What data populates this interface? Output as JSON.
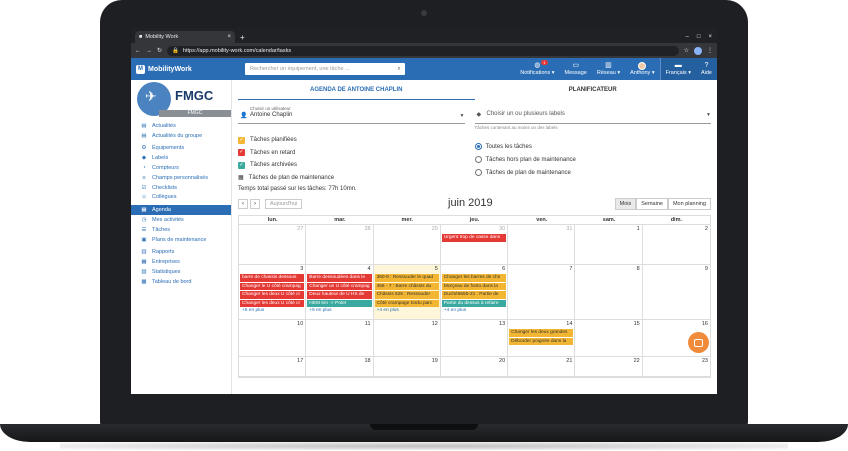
{
  "browser": {
    "tab_title": "Mobility Work",
    "url": "https://app.mobility-work.com/calendar/tasks"
  },
  "header": {
    "brand": "MobilityWork",
    "search_placeholder": "Rechercher un équipement, une tâche ...",
    "notif_count": "1",
    "nav": [
      "Notifications ▾",
      "Message",
      "Réseau ▾",
      "Anthony ▾",
      "Français ▾",
      "Aide"
    ]
  },
  "sidebar": {
    "company": "FMGC",
    "company_bar": "FMGC",
    "items": [
      {
        "label": "Actualités",
        "icon": "▤"
      },
      {
        "label": "Actualités du groupe",
        "icon": "▤"
      },
      {
        "label": "Équipements",
        "icon": "⚙"
      },
      {
        "label": "Labels",
        "icon": "◆"
      },
      {
        "label": "Compteurs",
        "icon": "◔"
      },
      {
        "label": "Champs personnalisés",
        "icon": "≡"
      },
      {
        "label": "Checklists",
        "icon": "☑"
      },
      {
        "label": "Collègues",
        "icon": "☺"
      },
      {
        "label": "Agenda",
        "icon": "▦"
      },
      {
        "label": "Mes activités",
        "icon": "◷"
      },
      {
        "label": "Tâches",
        "icon": "☰"
      },
      {
        "label": "Plans de maintenance",
        "icon": "▣"
      },
      {
        "label": "Rapports",
        "icon": "▥"
      },
      {
        "label": "Entreprises",
        "icon": "▦"
      },
      {
        "label": "Statistiques",
        "icon": "▧"
      },
      {
        "label": "Tableau de bord",
        "icon": "▩"
      }
    ]
  },
  "main": {
    "tab_agenda": "AGENDA DE ANTOINE CHAPLIN",
    "tab_planner": "PLANIFICATEUR",
    "user_label": "Choisir un utilisateur",
    "user_value": "Antoine Chaplin",
    "labels_placeholder": "Choisir un ou plusieurs labels",
    "labels_hint": "Tâches contenant au moins un des labels",
    "checkboxes": [
      {
        "label": "Tâches planifiées",
        "color": "#f2b632"
      },
      {
        "label": "Tâches en retard",
        "color": "#e53935"
      },
      {
        "label": "Tâches archivées",
        "color": "#3aa99f"
      }
    ],
    "maint_label": "Tâches de plan de maintenance",
    "radios": [
      "Toutes les tâches",
      "Tâches hors plan de maintenance",
      "Tâches de plan de maintenance"
    ],
    "total": "Temps total passé sur les tâches: 77h 10mn."
  },
  "calendar": {
    "today_label": "Aujourd'hui",
    "month": "juin 2019",
    "views": [
      "Mois",
      "Semaine",
      "Mon planning"
    ],
    "dows": [
      "lun.",
      "mar.",
      "mer.",
      "jeu.",
      "ven.",
      "sam.",
      "dim."
    ],
    "weeks": [
      {
        "days": [
          {
            "n": "27",
            "dim": true,
            "events": [],
            "more": ""
          },
          {
            "n": "28",
            "dim": true,
            "events": [],
            "more": ""
          },
          {
            "n": "29",
            "dim": true,
            "events": [],
            "more": ""
          },
          {
            "n": "30",
            "dim": true,
            "events": [
              {
                "t": "Urgent trop de casse dans",
                "c": "red"
              }
            ],
            "more": ""
          },
          {
            "n": "31",
            "dim": true,
            "events": [],
            "more": ""
          },
          {
            "n": "1",
            "dim": false,
            "events": [],
            "more": ""
          },
          {
            "n": "2",
            "dim": false,
            "events": [],
            "more": ""
          }
        ]
      },
      {
        "days": [
          {
            "n": "3",
            "dim": false,
            "events": [
              {
                "t": "barre de chassis dessous",
                "c": "red"
              },
              {
                "t": "Changer le U côté crampag",
                "c": "red"
              },
              {
                "t": "Changer les deux U côté cr",
                "c": "red"
              },
              {
                "t": "Changer les deux U côté cr",
                "c": "red"
              }
            ],
            "more": "+5 en plus"
          },
          {
            "n": "4",
            "dim": false,
            "events": [
              {
                "t": "Barre dessoudées dans le",
                "c": "red"
              },
              {
                "t": "Changer un U côté crampag",
                "c": "red"
              },
              {
                "t": "Deux hauteur de U HS de",
                "c": "red"
              },
              {
                "t": "HEM 6m -> Poter",
                "c": "grn"
              }
            ],
            "more": "+5 en plus"
          },
          {
            "n": "5",
            "dim": false,
            "hl": true,
            "events": [
              {
                "t": "360-9 : Ressouder le quad",
                "c": "yel"
              },
              {
                "t": "456 - 7 : Barre châssis du",
                "c": "yel"
              },
              {
                "t": "Châssis 625 : Ressouder",
                "c": "yel"
              },
              {
                "t": "Côté crampage tordu parc",
                "c": "yel"
              }
            ],
            "more": "+4 en plus"
          },
          {
            "n": "6",
            "dim": false,
            "events": [
              {
                "t": "Changer les barres de chs",
                "c": "yel"
              },
              {
                "t": "Morçeau de fonto dans la",
                "c": "yel"
              },
              {
                "t": "Duché6555-21 : Partie de",
                "c": "yel"
              },
              {
                "t": "Partie du dessus à refaire",
                "c": "grn"
              }
            ],
            "more": "+4 en plus"
          },
          {
            "n": "7",
            "dim": false,
            "events": [],
            "more": ""
          },
          {
            "n": "8",
            "dim": false,
            "events": [],
            "more": ""
          },
          {
            "n": "9",
            "dim": false,
            "events": [],
            "more": ""
          }
        ]
      },
      {
        "days": [
          {
            "n": "10",
            "dim": false,
            "events": [],
            "more": ""
          },
          {
            "n": "11",
            "dim": false,
            "events": [],
            "more": ""
          },
          {
            "n": "12",
            "dim": false,
            "events": [],
            "more": ""
          },
          {
            "n": "13",
            "dim": false,
            "events": [],
            "more": ""
          },
          {
            "n": "14",
            "dim": false,
            "events": [
              {
                "t": "Changer les deux grandes",
                "c": "yel"
              },
              {
                "t": "Déborder poignée dans la",
                "c": "yel"
              }
            ],
            "more": ""
          },
          {
            "n": "15",
            "dim": false,
            "events": [],
            "more": ""
          },
          {
            "n": "16",
            "dim": false,
            "events": [],
            "more": ""
          }
        ]
      },
      {
        "days": [
          {
            "n": "17",
            "dim": false,
            "events": [],
            "more": ""
          },
          {
            "n": "18",
            "dim": false,
            "events": [],
            "more": ""
          },
          {
            "n": "19",
            "dim": false,
            "events": [],
            "more": ""
          },
          {
            "n": "20",
            "dim": false,
            "events": [],
            "more": ""
          },
          {
            "n": "21",
            "dim": false,
            "events": [],
            "more": ""
          },
          {
            "n": "22",
            "dim": false,
            "events": [],
            "more": ""
          },
          {
            "n": "23",
            "dim": false,
            "events": [],
            "more": ""
          }
        ]
      }
    ]
  }
}
